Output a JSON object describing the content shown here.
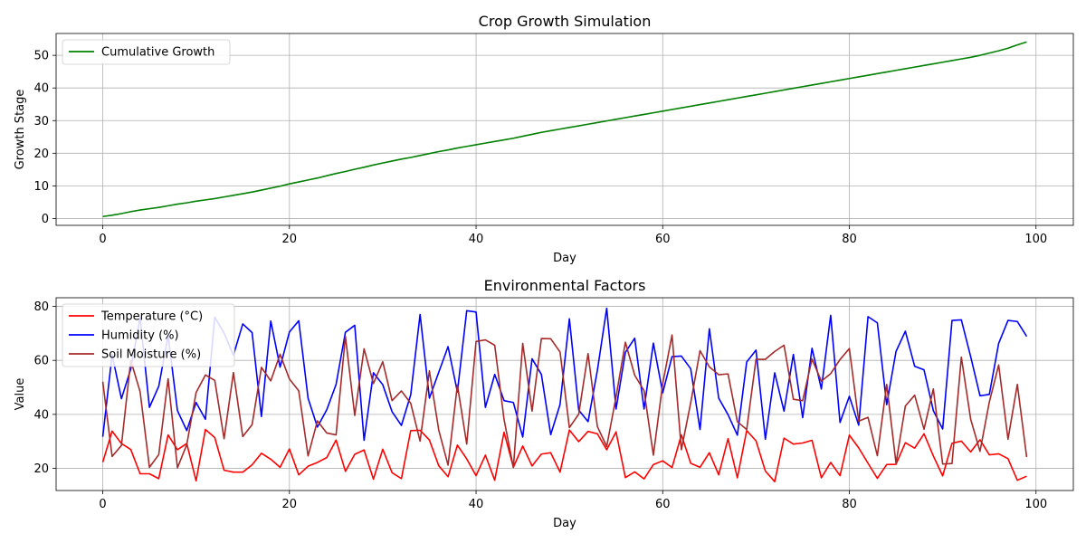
{
  "chart_data": [
    {
      "type": "line",
      "title": "Crop Growth Simulation",
      "xlabel": "Day",
      "ylabel": "Growth Stage",
      "xlim": [
        -5,
        104
      ],
      "ylim": [
        -2.1,
        56.7
      ],
      "xticks": [
        0,
        20,
        40,
        60,
        80,
        100
      ],
      "yticks": [
        0,
        10,
        20,
        30,
        40,
        50
      ],
      "grid": true,
      "legend_position": "upper-left",
      "series": [
        {
          "name": "Cumulative Growth",
          "color": "#008000",
          "x_start": 0,
          "x_step": 1,
          "values": [
            0.6,
            1.0,
            1.5,
            2.1,
            2.6,
            3.0,
            3.4,
            3.9,
            4.4,
            4.8,
            5.3,
            5.7,
            6.1,
            6.6,
            7.1,
            7.6,
            8.1,
            8.7,
            9.3,
            9.9,
            10.6,
            11.2,
            11.8,
            12.4,
            13.1,
            13.8,
            14.4,
            15.1,
            15.7,
            16.4,
            17.0,
            17.6,
            18.2,
            18.7,
            19.3,
            19.9,
            20.5,
            21.0,
            21.6,
            22.1,
            22.6,
            23.1,
            23.6,
            24.1,
            24.6,
            25.2,
            25.8,
            26.4,
            26.9,
            27.4,
            27.9,
            28.4,
            28.9,
            29.4,
            29.9,
            30.4,
            30.9,
            31.4,
            31.9,
            32.4,
            32.9,
            33.4,
            33.9,
            34.4,
            34.9,
            35.4,
            35.9,
            36.4,
            36.9,
            37.4,
            37.9,
            38.4,
            38.9,
            39.4,
            39.9,
            40.4,
            40.9,
            41.4,
            41.9,
            42.4,
            42.9,
            43.4,
            43.9,
            44.4,
            44.9,
            45.4,
            45.9,
            46.4,
            46.9,
            47.4,
            47.9,
            48.4,
            48.9,
            49.4,
            50.0,
            50.7,
            51.4,
            52.2,
            53.2,
            54.1
          ]
        }
      ]
    },
    {
      "type": "line",
      "title": "Environmental Factors",
      "xlabel": "Day",
      "ylabel": "Value",
      "xlim": [
        -5,
        104
      ],
      "ylim": [
        11.8,
        83.2
      ],
      "xticks": [
        0,
        20,
        40,
        60,
        80,
        100
      ],
      "yticks": [
        20,
        40,
        60,
        80
      ],
      "grid": true,
      "legend_position": "upper-left",
      "series": [
        {
          "name": "Temperature (°C)",
          "color": "#ff0000",
          "x_start": 0,
          "x_step": 1,
          "values": [
            22.3,
            33.8,
            29.2,
            27.0,
            18.0,
            18.0,
            16.2,
            32.4,
            26.9,
            29.2,
            15.4,
            34.4,
            31.4,
            19.3,
            18.6,
            18.6,
            21.3,
            25.6,
            23.4,
            20.4,
            27.2,
            17.6,
            20.8,
            22.2,
            24.0,
            30.5,
            18.9,
            25.2,
            26.8,
            16.0,
            27.1,
            18.4,
            16.2,
            34.0,
            34.1,
            30.5,
            21.0,
            16.9,
            28.6,
            23.5,
            17.3,
            24.9,
            15.6,
            33.4,
            20.4,
            28.3,
            20.9,
            25.3,
            25.8,
            18.6,
            34.2,
            29.9,
            33.7,
            32.8,
            26.9,
            33.5,
            16.6,
            18.7,
            16.1,
            21.4,
            22.8,
            20.3,
            32.4,
            21.9,
            20.4,
            25.8,
            17.6,
            31.0,
            16.5,
            34.0,
            30.2,
            19.0,
            15.1,
            31.2,
            29.0,
            29.4,
            30.4,
            16.5,
            22.2,
            17.3,
            32.3,
            27.6,
            21.9,
            16.3,
            21.4,
            21.5,
            29.5,
            27.5,
            32.8,
            24.6,
            17.2,
            29.3,
            30.1,
            26.1,
            30.6,
            25.0,
            25.4,
            23.6,
            15.6,
            17.1
          ]
        },
        {
          "name": "Humidity (%)",
          "color": "#0000ff",
          "x_start": 0,
          "x_step": 1,
          "values": [
            31.7,
            62.1,
            45.8,
            56.8,
            75.9,
            42.6,
            50.4,
            69.3,
            41.4,
            34.0,
            44.4,
            38.2,
            76.0,
            70.1,
            61.9,
            73.5,
            70.3,
            39.2,
            74.6,
            57.5,
            70.5,
            74.7,
            46.0,
            35.3,
            41.7,
            51.1,
            70.4,
            73.0,
            30.4,
            55.4,
            51.0,
            41.0,
            35.9,
            47.3,
            77.0,
            46.0,
            55.6,
            65.1,
            48.3,
            78.4,
            77.9,
            42.6,
            54.8,
            45.1,
            44.4,
            31.6,
            60.6,
            54.8,
            32.5,
            43.7,
            75.4,
            41.6,
            37.3,
            56.3,
            79.3,
            42.0,
            63.0,
            68.2,
            42.0,
            66.4,
            48.0,
            61.4,
            61.6,
            56.9,
            34.4,
            71.7,
            46.0,
            39.9,
            32.3,
            59.4,
            63.8,
            30.8,
            55.4,
            41.2,
            62.2,
            38.8,
            64.5,
            49.4,
            76.7,
            37.0,
            46.7,
            36.0,
            76.2,
            73.9,
            43.6,
            63.3,
            70.8,
            57.8,
            56.5,
            41.4,
            34.6,
            74.8,
            75.0,
            61.4,
            46.9,
            47.4,
            66.3,
            74.8,
            74.4,
            68.9
          ]
        },
        {
          "name": "Soil Moisture (%)",
          "color": "#a52a2a",
          "x_start": 0,
          "x_step": 1,
          "values": [
            52.1,
            24.4,
            28.5,
            60.0,
            48.4,
            20.4,
            25.1,
            53.2,
            20.2,
            28.8,
            48.1,
            54.6,
            52.6,
            31.0,
            55.5,
            31.8,
            36.2,
            57.4,
            52.4,
            62.3,
            53.1,
            48.7,
            24.6,
            37.6,
            33.1,
            32.4,
            68.9,
            39.6,
            64.3,
            51.4,
            59.5,
            45.1,
            48.7,
            44.1,
            30.1,
            56.1,
            34.2,
            21.2,
            50.9,
            29.0,
            67.0,
            67.6,
            65.6,
            38.1,
            20.3,
            66.3,
            41.2,
            68.1,
            68.0,
            63.1,
            35.1,
            40.1,
            62.5,
            35.5,
            28.1,
            46.5,
            66.7,
            54.5,
            48.8,
            24.9,
            51.4,
            69.4,
            26.9,
            44.3,
            63.6,
            57.6,
            54.7,
            55.0,
            37.3,
            34.4,
            60.4,
            60.4,
            63.3,
            65.6,
            45.6,
            45.1,
            60.5,
            52.3,
            55.1,
            60.3,
            64.4,
            37.5,
            38.9,
            24.7,
            51.1,
            21.9,
            43.1,
            47.1,
            34.5,
            49.4,
            21.6,
            21.8,
            61.2,
            38.2,
            26.3,
            44.6,
            58.3,
            30.8,
            51.1,
            24.2
          ]
        }
      ]
    }
  ]
}
